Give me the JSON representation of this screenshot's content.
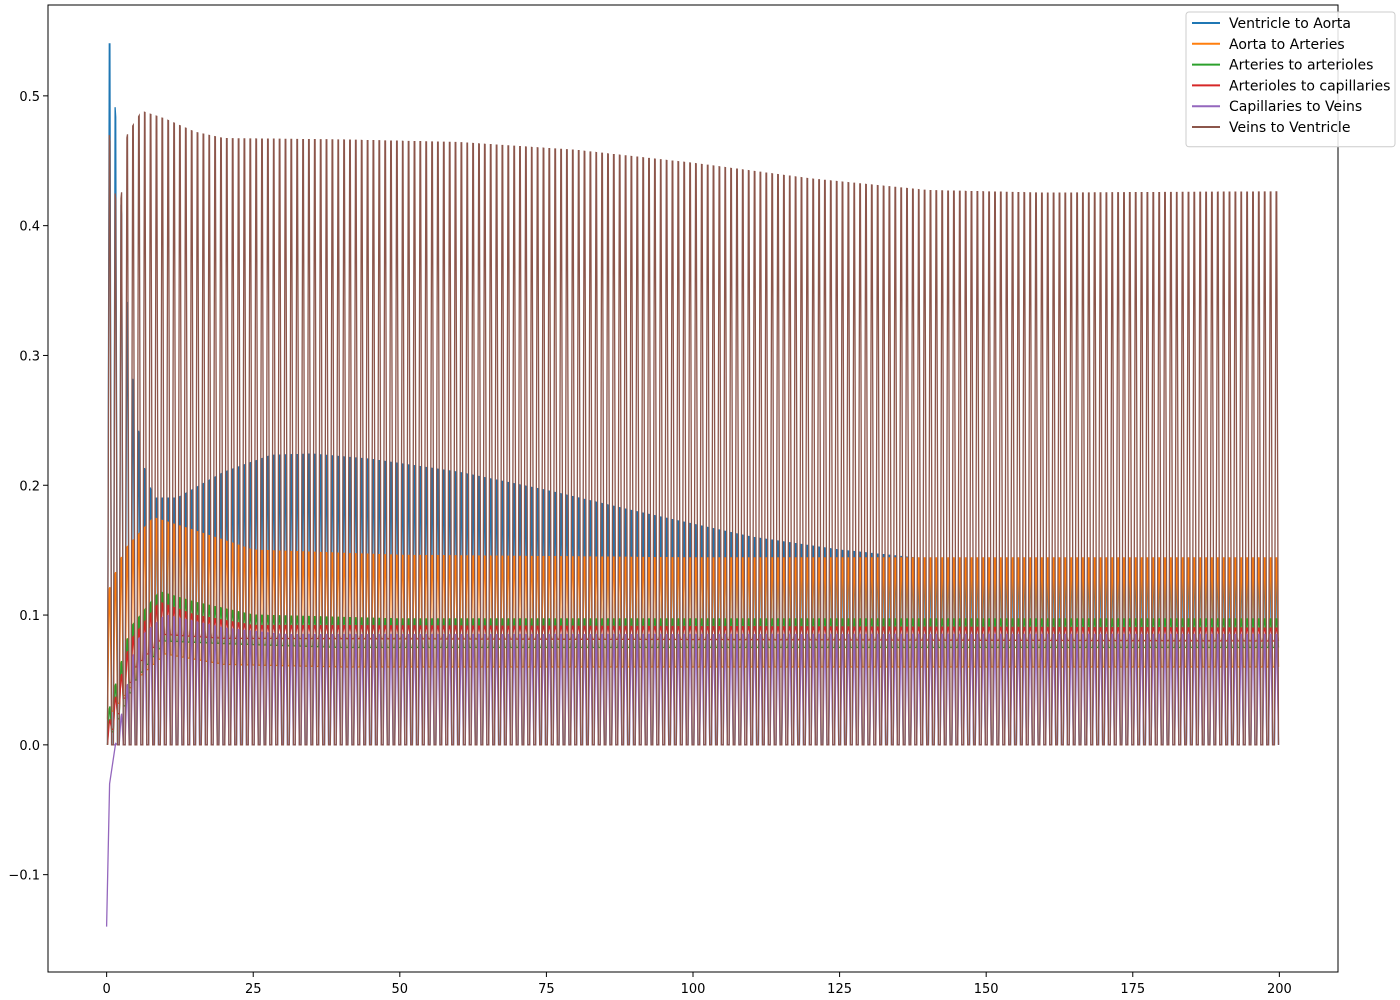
{
  "chart_data": {
    "type": "line",
    "title": "",
    "xlabel": "",
    "ylabel": "",
    "xlim": [
      -10,
      210
    ],
    "ylim": [
      -0.175,
      0.57
    ],
    "x_ticks": [
      0,
      25,
      50,
      75,
      100,
      125,
      150,
      175,
      200
    ],
    "x_tick_labels": [
      "0",
      "25",
      "50",
      "75",
      "100",
      "125",
      "150",
      "175",
      "200"
    ],
    "y_ticks": [
      -0.1,
      0.0,
      0.1,
      0.2,
      0.3,
      0.4,
      0.5
    ],
    "y_tick_labels": [
      "−0.1",
      "0.0",
      "0.1",
      "0.2",
      "0.3",
      "0.4",
      "0.5"
    ],
    "grid": false,
    "legend_position": "top-right",
    "sampling_note_x_range": [
      0,
      200
    ],
    "oscillation_cycles": 200,
    "series": [
      {
        "name": "Ventricle to Aorta",
        "color": "#1f77b4",
        "initial_peak": 0.54,
        "trough_envelope": [
          [
            0,
            0.0
          ],
          [
            200,
            0.0
          ]
        ],
        "peak_envelope": [
          [
            0.8,
            0.54
          ],
          [
            2,
            0.45
          ],
          [
            4,
            0.3
          ],
          [
            6,
            0.22
          ],
          [
            8,
            0.19
          ],
          [
            12,
            0.19
          ],
          [
            20,
            0.21
          ],
          [
            28,
            0.223
          ],
          [
            35,
            0.224
          ],
          [
            45,
            0.22
          ],
          [
            60,
            0.21
          ],
          [
            75,
            0.196
          ],
          [
            90,
            0.18
          ],
          [
            100,
            0.17
          ],
          [
            110,
            0.16
          ],
          [
            125,
            0.15
          ],
          [
            140,
            0.143
          ],
          [
            160,
            0.142
          ],
          [
            200,
            0.142
          ]
        ]
      },
      {
        "name": "Aorta to Arteries",
        "color": "#ff7f0e",
        "initial_peak": 0.115,
        "trough_envelope": [
          [
            0,
            0.02
          ],
          [
            5,
            0.05
          ],
          [
            10,
            0.07
          ],
          [
            20,
            0.062
          ],
          [
            40,
            0.06
          ],
          [
            200,
            0.06
          ]
        ],
        "peak_envelope": [
          [
            0,
            0.115
          ],
          [
            3,
            0.15
          ],
          [
            8,
            0.175
          ],
          [
            15,
            0.165
          ],
          [
            25,
            0.15
          ],
          [
            50,
            0.146
          ],
          [
            100,
            0.144
          ],
          [
            200,
            0.144
          ]
        ]
      },
      {
        "name": "Arteries to arterioles",
        "color": "#2ca02c",
        "initial_peak": 0.02,
        "trough_envelope": [
          [
            0,
            0.0
          ],
          [
            5,
            0.05
          ],
          [
            10,
            0.08
          ],
          [
            20,
            0.078
          ],
          [
            40,
            0.075
          ],
          [
            200,
            0.075
          ]
        ],
        "peak_envelope": [
          [
            0,
            0.02
          ],
          [
            4,
            0.09
          ],
          [
            9,
            0.118
          ],
          [
            15,
            0.11
          ],
          [
            25,
            0.1
          ],
          [
            50,
            0.097
          ],
          [
            200,
            0.097
          ]
        ]
      },
      {
        "name": "Arterioles to capillaries",
        "color": "#d62728",
        "initial_peak": 0.01,
        "trough_envelope": [
          [
            0,
            0.0
          ],
          [
            5,
            0.06
          ],
          [
            10,
            0.085
          ],
          [
            20,
            0.082
          ],
          [
            200,
            0.08
          ]
        ],
        "peak_envelope": [
          [
            0,
            0.01
          ],
          [
            4,
            0.08
          ],
          [
            9,
            0.11
          ],
          [
            15,
            0.1
          ],
          [
            25,
            0.092
          ],
          [
            200,
            0.09
          ]
        ]
      },
      {
        "name": "Capillaries to Veins",
        "color": "#9467bd",
        "initial_peak": -0.14,
        "start_values": [
          [
            0,
            -0.14
          ],
          [
            0.5,
            -0.03
          ],
          [
            1.5,
            0.0
          ]
        ],
        "trough_envelope": [
          [
            1.5,
            0.0
          ],
          [
            200,
            0.0
          ]
        ],
        "peak_envelope": [
          [
            1.5,
            0.0
          ],
          [
            5,
            0.08
          ],
          [
            10,
            0.1
          ],
          [
            20,
            0.09
          ],
          [
            30,
            0.085
          ],
          [
            200,
            0.085
          ]
        ]
      },
      {
        "name": "Veins to Ventricle",
        "color": "#8c564b",
        "initial_peak": 0.49,
        "trough_envelope": [
          [
            0,
            0.0
          ],
          [
            200,
            0.0
          ]
        ],
        "peak_envelope": [
          [
            0,
            0.49
          ],
          [
            2,
            0.4
          ],
          [
            3.5,
            0.47
          ],
          [
            6,
            0.488
          ],
          [
            10,
            0.482
          ],
          [
            15,
            0.472
          ],
          [
            20,
            0.467
          ],
          [
            40,
            0.466
          ],
          [
            60,
            0.464
          ],
          [
            80,
            0.458
          ],
          [
            100,
            0.448
          ],
          [
            120,
            0.436
          ],
          [
            140,
            0.427
          ],
          [
            160,
            0.425
          ],
          [
            200,
            0.426
          ]
        ]
      }
    ]
  }
}
